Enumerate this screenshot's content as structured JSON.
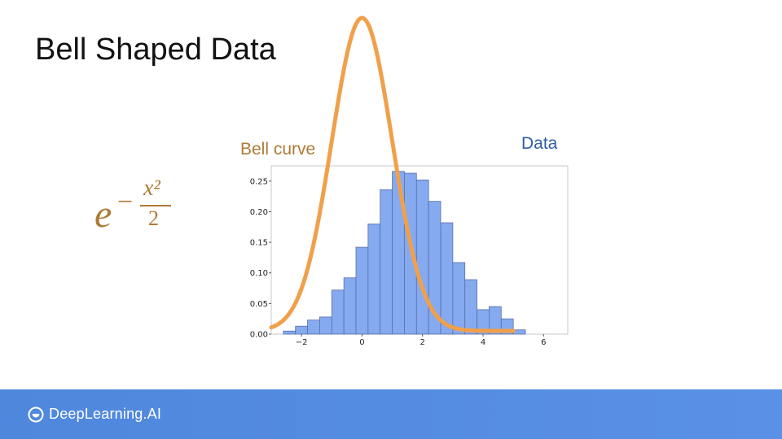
{
  "slide": {
    "title": "Bell Shaped Data",
    "bell_label": "Bell curve",
    "data_label": "Data",
    "formula": {
      "base": "e",
      "minus": "−",
      "numerator": "x²",
      "denominator": "2"
    },
    "brand": "DeepLearning.AI"
  },
  "colors": {
    "bell": "#f0a04b",
    "bell_label": "#b07a35",
    "bars": "#86aaf0",
    "bar_edge": "#5a6fa8",
    "data_label": "#2e5ea8",
    "footer": "#5a91e6"
  },
  "chart_data": {
    "type": "bar",
    "series_histogram": {
      "bin_edges": [
        -2.6,
        -2.2,
        -1.8,
        -1.4,
        -1.0,
        -0.6,
        -0.2,
        0.2,
        0.6,
        1.0,
        1.4,
        1.8,
        2.2,
        2.6,
        3.0,
        3.4,
        3.8,
        4.2,
        4.6,
        5.0,
        5.4,
        5.8,
        6.2
      ],
      "values": [
        0.005,
        0.013,
        0.023,
        0.028,
        0.072,
        0.092,
        0.142,
        0.18,
        0.236,
        0.266,
        0.263,
        0.252,
        0.217,
        0.182,
        0.117,
        0.089,
        0.04,
        0.045,
        0.025,
        0.007,
        0.0,
        0.0
      ]
    },
    "xlim": [
      -3,
      6.8
    ],
    "ylim": [
      0,
      0.275
    ],
    "xticks": [
      -2,
      0,
      2,
      4,
      6
    ],
    "yticks": [
      0.0,
      0.05,
      0.1,
      0.15,
      0.2,
      0.25
    ],
    "ytick_labels": [
      "0.00",
      "0.05",
      "0.10",
      "0.15",
      "0.20",
      "0.25"
    ],
    "xtick_labels": [
      "−2",
      "0",
      "2",
      "4",
      "6"
    ],
    "bell_curve": {
      "formula": "exp(-x^2/2)",
      "x_range": [
        -3,
        5
      ],
      "peak": 1.0
    },
    "grid": false
  }
}
